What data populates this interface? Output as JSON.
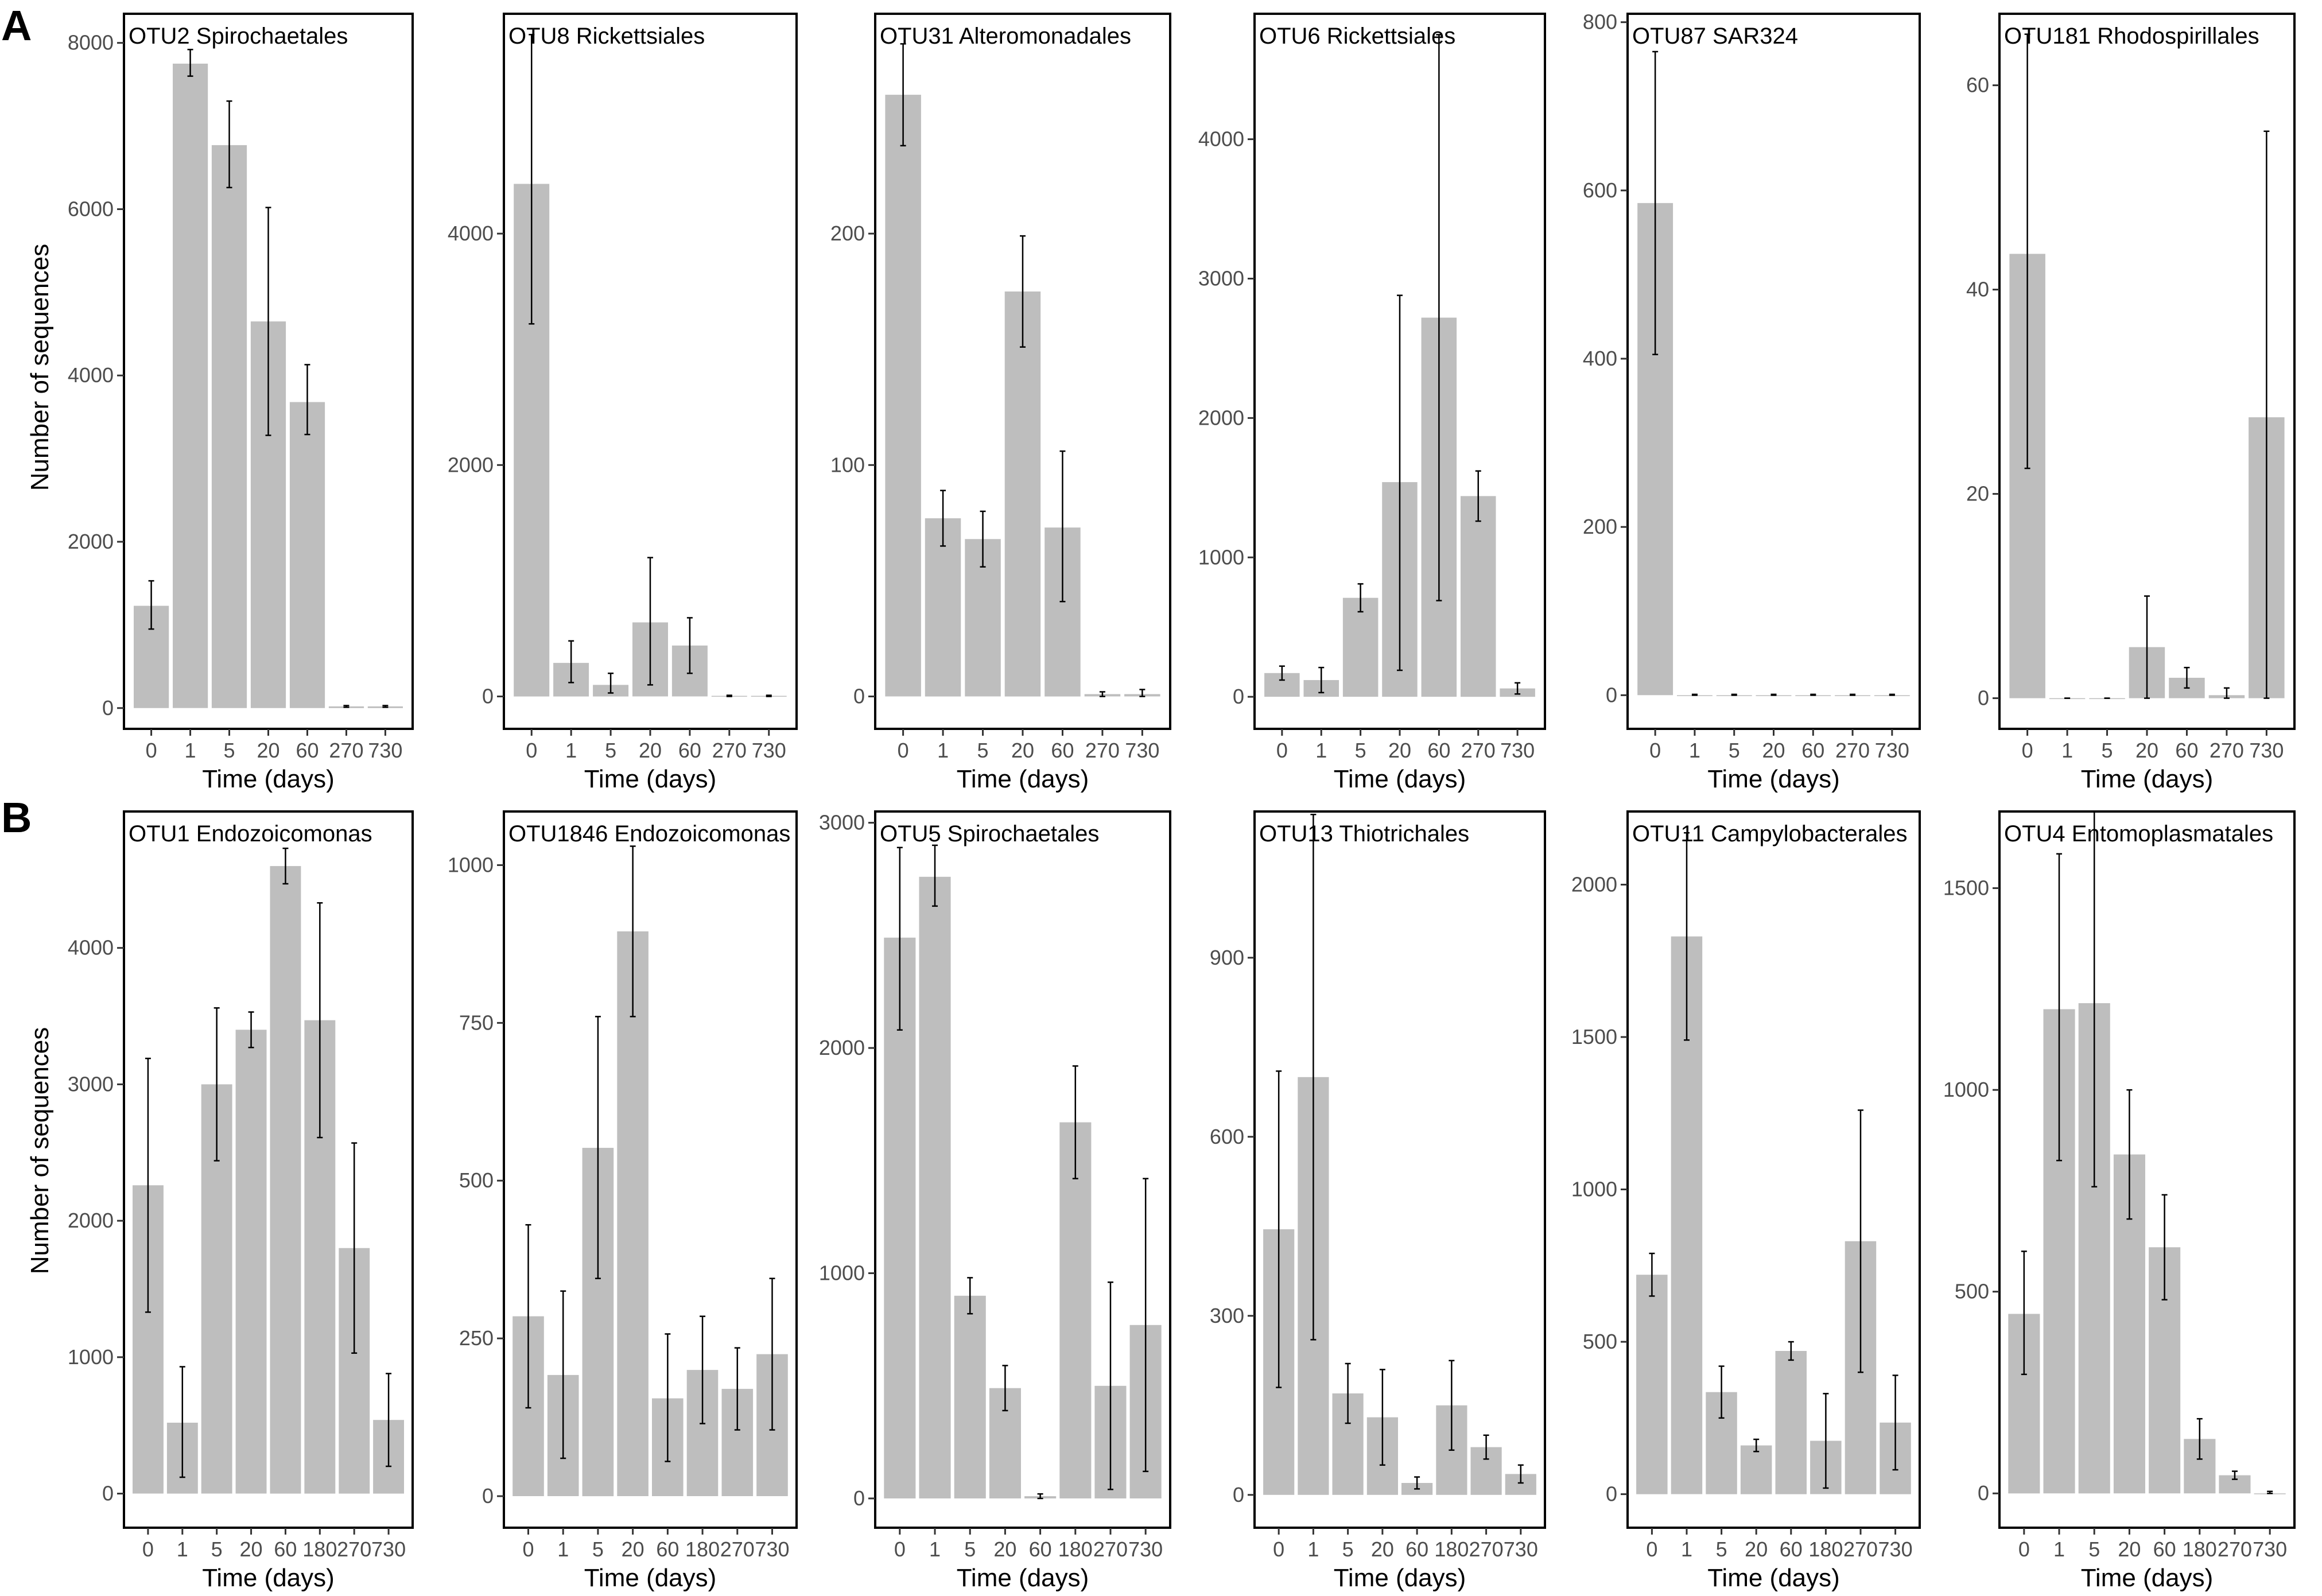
{
  "figure": {
    "row_labels": [
      "A",
      "B"
    ],
    "ylabel": "Number of sequences",
    "xlabel": "Time (days)"
  },
  "chart_data": [
    {
      "type": "bar",
      "title": "OTU2 Spirochaetales",
      "categories": [
        "0",
        "1",
        "5",
        "20",
        "60",
        "270",
        "730"
      ],
      "values": [
        1230,
        7750,
        6770,
        4650,
        3680,
        20,
        20
      ],
      "errors": [
        [
          950,
          1530
        ],
        [
          7600,
          7920
        ],
        [
          6260,
          7300
        ],
        [
          3280,
          6020
        ],
        [
          3290,
          4130
        ],
        [
          10,
          30
        ],
        [
          10,
          30
        ]
      ],
      "ylim": [
        -250,
        8350
      ],
      "yticks": [
        0,
        2000,
        4000,
        6000,
        8000
      ],
      "xlabel": "Time (days)",
      "ylabel": "Number of sequences"
    },
    {
      "type": "bar",
      "title": "OTU8 Rickettsiales",
      "categories": [
        "0",
        "1",
        "5",
        "20",
        "60",
        "270",
        "730"
      ],
      "values": [
        4430,
        290,
        100,
        640,
        440,
        5,
        5
      ],
      "errors": [
        [
          3220,
          5720
        ],
        [
          120,
          480
        ],
        [
          30,
          200
        ],
        [
          100,
          1200
        ],
        [
          200,
          680
        ],
        [
          0,
          10
        ],
        [
          0,
          10
        ]
      ],
      "ylim": [
        -280,
        5900
      ],
      "yticks": [
        0,
        2000,
        4000
      ],
      "xlabel": "Time (days)",
      "ylabel": ""
    },
    {
      "type": "bar",
      "title": "OTU31 Alteromonadales",
      "categories": [
        "0",
        "1",
        "5",
        "20",
        "60",
        "270",
        "730"
      ],
      "values": [
        260,
        77,
        68,
        175,
        73,
        1,
        1
      ],
      "errors": [
        [
          238,
          282
        ],
        [
          65,
          89
        ],
        [
          56,
          80
        ],
        [
          151,
          199
        ],
        [
          41,
          106
        ],
        [
          0,
          2
        ],
        [
          0,
          3
        ]
      ],
      "ylim": [
        -14,
        295
      ],
      "yticks": [
        0,
        100,
        200
      ],
      "xlabel": "Time (days)",
      "ylabel": ""
    },
    {
      "type": "bar",
      "title": "OTU6 Rickettsiales",
      "categories": [
        "0",
        "1",
        "5",
        "20",
        "60",
        "270",
        "730"
      ],
      "values": [
        170,
        120,
        710,
        1540,
        2720,
        1440,
        60
      ],
      "errors": [
        [
          120,
          220
        ],
        [
          30,
          210
        ],
        [
          610,
          810
        ],
        [
          190,
          2880
        ],
        [
          690,
          4750
        ],
        [
          1260,
          1620
        ],
        [
          20,
          100
        ]
      ],
      "ylim": [
        -230,
        4900
      ],
      "yticks": [
        0,
        1000,
        2000,
        3000,
        4000
      ],
      "xlabel": "Time (days)",
      "ylabel": ""
    },
    {
      "type": "bar",
      "title": "OTU87 SAR324",
      "categories": [
        "0",
        "1",
        "5",
        "20",
        "60",
        "270",
        "730"
      ],
      "values": [
        585,
        0,
        0,
        0,
        0,
        0,
        0
      ],
      "errors": [
        [
          405,
          765
        ],
        [
          0,
          1
        ],
        [
          0,
          1
        ],
        [
          0,
          1
        ],
        [
          0,
          1
        ],
        [
          0,
          1
        ],
        [
          0,
          1
        ]
      ],
      "ylim": [
        -40,
        810
      ],
      "yticks": [
        0,
        200,
        400,
        600,
        800
      ],
      "xlabel": "Time (days)",
      "ylabel": ""
    },
    {
      "type": "bar",
      "title": "OTU181 Rhodospirillales",
      "categories": [
        "0",
        "1",
        "5",
        "20",
        "60",
        "270",
        "730"
      ],
      "values": [
        43.5,
        0,
        0,
        5,
        2,
        0.3,
        27.5
      ],
      "errors": [
        [
          22.5,
          65
        ],
        [
          0,
          0
        ],
        [
          0,
          0
        ],
        [
          0,
          10
        ],
        [
          1,
          3
        ],
        [
          0,
          1
        ],
        [
          0,
          55.5
        ]
      ],
      "ylim": [
        -3,
        67
      ],
      "yticks": [
        0,
        20,
        40,
        60
      ],
      "xlabel": "Time (days)",
      "ylabel": ""
    },
    {
      "type": "bar",
      "title": "OTU1 Endozoicomonas",
      "categories": [
        "0",
        "1",
        "5",
        "20",
        "60",
        "180",
        "270",
        "730"
      ],
      "values": [
        2260,
        520,
        3000,
        3400,
        4600,
        3470,
        1800,
        540
      ],
      "errors": [
        [
          1330,
          3190
        ],
        [
          120,
          930
        ],
        [
          2440,
          3560
        ],
        [
          3270,
          3530
        ],
        [
          4470,
          4730
        ],
        [
          2610,
          4330
        ],
        [
          1030,
          2570
        ],
        [
          200,
          880
        ]
      ],
      "ylim": [
        -250,
        5000
      ],
      "yticks": [
        0,
        1000,
        2000,
        3000,
        4000
      ],
      "xlabel": "Time (days)",
      "ylabel": "Number of sequences"
    },
    {
      "type": "bar",
      "title": "OTU1846 Endozoicomonas",
      "categories": [
        "0",
        "1",
        "5",
        "20",
        "60",
        "180",
        "270",
        "730"
      ],
      "values": [
        285,
        192,
        552,
        895,
        155,
        200,
        170,
        225
      ],
      "errors": [
        [
          140,
          430
        ],
        [
          60,
          325
        ],
        [
          345,
          760
        ],
        [
          760,
          1030
        ],
        [
          55,
          257
        ],
        [
          115,
          285
        ],
        [
          105,
          235
        ],
        [
          105,
          345
        ]
      ],
      "ylim": [
        -50,
        1085
      ],
      "yticks": [
        0,
        250,
        500,
        750,
        1000
      ],
      "xlabel": "Time (days)",
      "ylabel": ""
    },
    {
      "type": "bar",
      "title": "OTU5 Spirochaetales",
      "categories": [
        "0",
        "1",
        "5",
        "20",
        "60",
        "180",
        "270",
        "730"
      ],
      "values": [
        2490,
        2760,
        900,
        490,
        10,
        1670,
        500,
        770
      ],
      "errors": [
        [
          2080,
          2890
        ],
        [
          2630,
          2900
        ],
        [
          820,
          980
        ],
        [
          390,
          590
        ],
        [
          0,
          20
        ],
        [
          1420,
          1920
        ],
        [
          40,
          960
        ],
        [
          120,
          1420
        ]
      ],
      "ylim": [
        -130,
        3050
      ],
      "yticks": [
        0,
        1000,
        2000,
        3000
      ],
      "xlabel": "Time (days)",
      "ylabel": ""
    },
    {
      "type": "bar",
      "title": "OTU13 Thiotrichales",
      "categories": [
        "0",
        "1",
        "5",
        "20",
        "60",
        "180",
        "270",
        "730"
      ],
      "values": [
        445,
        700,
        170,
        130,
        20,
        150,
        80,
        35
      ],
      "errors": [
        [
          180,
          710
        ],
        [
          260,
          1140
        ],
        [
          120,
          220
        ],
        [
          50,
          210
        ],
        [
          10,
          30
        ],
        [
          75,
          225
        ],
        [
          60,
          100
        ],
        [
          20,
          50
        ]
      ],
      "ylim": [
        -55,
        1145
      ],
      "yticks": [
        0,
        300,
        600,
        900
      ],
      "xlabel": "Time (days)",
      "ylabel": ""
    },
    {
      "type": "bar",
      "title": "OTU11 Campylobacterales",
      "categories": [
        "0",
        "1",
        "5",
        "20",
        "60",
        "180",
        "270",
        "730"
      ],
      "values": [
        720,
        1830,
        335,
        160,
        470,
        175,
        830,
        235
      ],
      "errors": [
        [
          650,
          790
        ],
        [
          1490,
          2170
        ],
        [
          250,
          420
        ],
        [
          140,
          180
        ],
        [
          440,
          500
        ],
        [
          20,
          330
        ],
        [
          400,
          1260
        ],
        [
          80,
          390
        ]
      ],
      "ylim": [
        -110,
        2240
      ],
      "yticks": [
        0,
        500,
        1000,
        1500,
        2000
      ],
      "xlabel": "Time (days)",
      "ylabel": ""
    },
    {
      "type": "bar",
      "title": "OTU4 Entomoplasmatales",
      "categories": [
        "0",
        "1",
        "5",
        "20",
        "60",
        "180",
        "270",
        "730"
      ],
      "values": [
        445,
        1200,
        1215,
        840,
        610,
        135,
        45,
        0
      ],
      "errors": [
        [
          295,
          600
        ],
        [
          825,
          1585
        ],
        [
          760,
          1690
        ],
        [
          680,
          1000
        ],
        [
          480,
          740
        ],
        [
          85,
          185
        ],
        [
          35,
          55
        ],
        [
          0,
          5
        ]
      ],
      "ylim": [
        -85,
        1690
      ],
      "yticks": [
        0,
        500,
        1000,
        1500
      ],
      "xlabel": "Time (days)",
      "ylabel": ""
    }
  ]
}
